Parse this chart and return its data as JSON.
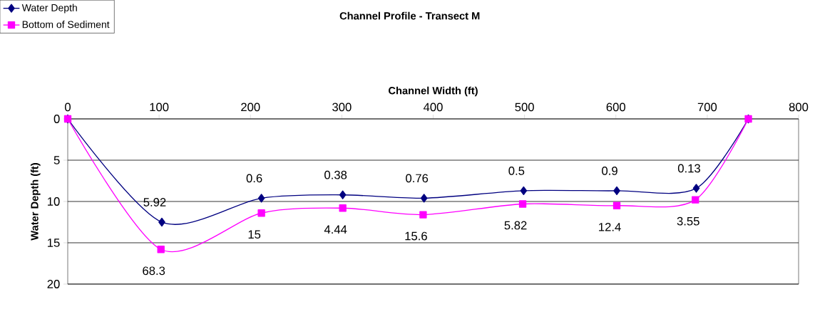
{
  "chart_data": {
    "type": "line",
    "title": "Channel Profile - Transect M",
    "xlabel": "Channel Width (ft)",
    "ylabel": "Water Depth (ft)",
    "series": [
      {
        "name": "Water Depth",
        "color": "#000080",
        "marker": "diamond",
        "x": [
          0,
          103,
          212,
          301,
          390,
          499,
          601,
          688,
          745
        ],
        "values": [
          0,
          12.5,
          9.6,
          9.2,
          9.6,
          8.7,
          8.7,
          8.4,
          0
        ]
      },
      {
        "name": "Bottom of Sediment",
        "color": "#ff00ff",
        "marker": "square",
        "x": [
          0,
          102,
          212,
          301,
          389,
          498,
          601,
          687,
          745
        ],
        "values": [
          0,
          15.8,
          11.4,
          10.8,
          11.6,
          10.3,
          10.5,
          9.8,
          0
        ]
      }
    ],
    "annotations": [
      {
        "text": "5.92",
        "x": 103,
        "y": 12.5
      },
      {
        "text": "0.6",
        "x": 212,
        "y": 9.6
      },
      {
        "text": "0.38",
        "x": 301,
        "y": 9.2
      },
      {
        "text": "0.76",
        "x": 390,
        "y": 9.6
      },
      {
        "text": "0.5",
        "x": 499,
        "y": 8.7
      },
      {
        "text": "0.9",
        "x": 601,
        "y": 8.7
      },
      {
        "text": "0.13",
        "x": 688,
        "y": 8.4
      },
      {
        "text": "68.3",
        "x": 102,
        "y": 15.8
      },
      {
        "text": "15",
        "x": 212,
        "y": 11.4
      },
      {
        "text": "4.44",
        "x": 301,
        "y": 10.8
      },
      {
        "text": "15.6",
        "x": 389,
        "y": 11.6
      },
      {
        "text": "5.82",
        "x": 498,
        "y": 10.3
      },
      {
        "text": "12.4",
        "x": 601,
        "y": 10.5
      },
      {
        "text": "3.55",
        "x": 687,
        "y": 9.8
      }
    ],
    "xlim": [
      0,
      800
    ],
    "xticks": [
      0,
      100,
      200,
      300,
      400,
      500,
      600,
      700,
      800
    ],
    "ylim": [
      20,
      0
    ],
    "yticks": [
      0,
      5,
      10,
      15,
      20
    ],
    "grid": "y",
    "legend": "top left",
    "line_style": "solid"
  }
}
